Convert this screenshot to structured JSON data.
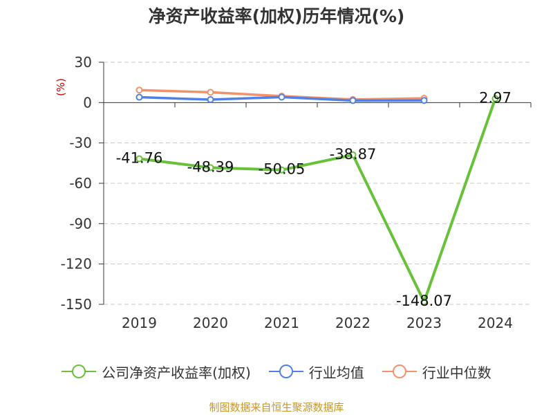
{
  "chart_data": {
    "type": "line",
    "title": "净资产收益率(加权)历年情况(%)",
    "ylabel": "(%)",
    "categories": [
      "2019",
      "2020",
      "2021",
      "2022",
      "2023",
      "2024"
    ],
    "ylim": [
      -150,
      30
    ],
    "yticks": [
      30,
      0,
      -30,
      -60,
      -90,
      -120,
      -150
    ],
    "grid": true,
    "legend_position": "bottom",
    "series": [
      {
        "name": "公司净资产收益率(加权)",
        "color": "#67c23a",
        "values": [
          -41.76,
          -48.39,
          -50.05,
          -38.87,
          -148.07,
          2.97
        ],
        "labels": [
          "-41.76",
          "-48.39",
          "-50.05",
          "-38.87",
          "-148.07",
          "2.97"
        ]
      },
      {
        "name": "行业均值",
        "color": "#4f81e6",
        "values": [
          4.0,
          2.2,
          4.1,
          1.5,
          1.6,
          null
        ]
      },
      {
        "name": "行业中位数",
        "color": "#f5916a",
        "values": [
          9.3,
          7.7,
          4.8,
          2.3,
          3.2,
          null
        ]
      }
    ]
  },
  "footer": {
    "source": "制图数据来自恒生聚源数据库"
  }
}
